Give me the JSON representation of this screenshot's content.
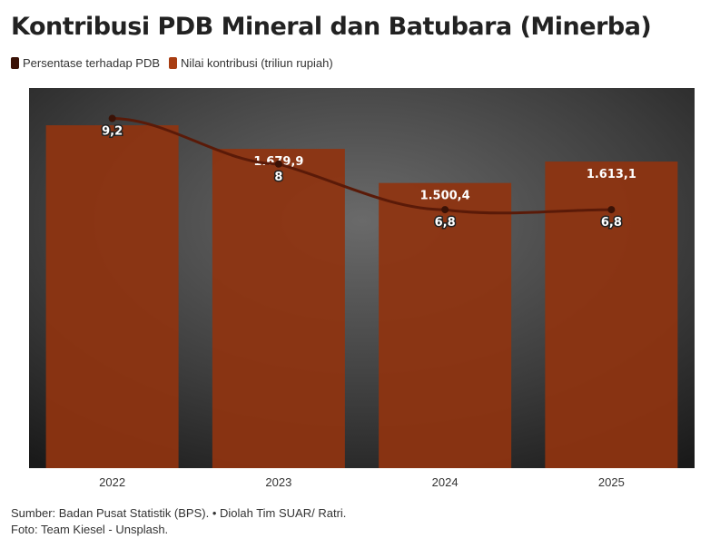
{
  "chart_data": {
    "type": "bar",
    "title": "Kontribusi PDB Mineral dan Batubara (Minerba)",
    "categories": [
      "2022",
      "2023",
      "2024",
      "2025"
    ],
    "series": [
      {
        "name": "Persentase terhadap PDB",
        "type": "line",
        "values": [
          9.2,
          8,
          6.8,
          6.8
        ],
        "labels": [
          "9,2",
          "8",
          "6,8",
          "6,8"
        ],
        "color": "#5a1a08",
        "ylim": [
          0,
          10
        ]
      },
      {
        "name": "Nilai kontribusi (triliun rupiah)",
        "type": "bar",
        "values": [
          1804,
          1679.9,
          1500.4,
          1613.1
        ],
        "labels": [
          "",
          "1.679,9",
          "1.500,4",
          "1.613,1"
        ],
        "color": "#8f3410",
        "ylim": [
          0,
          2000
        ]
      }
    ],
    "grid": false,
    "legend": "top-left"
  },
  "source": "Sumber: Badan Pusat Statistik (BPS). • Diolah Tim SUAR/ Ratri.",
  "photo": "Foto: Team Kiesel - Unsplash."
}
